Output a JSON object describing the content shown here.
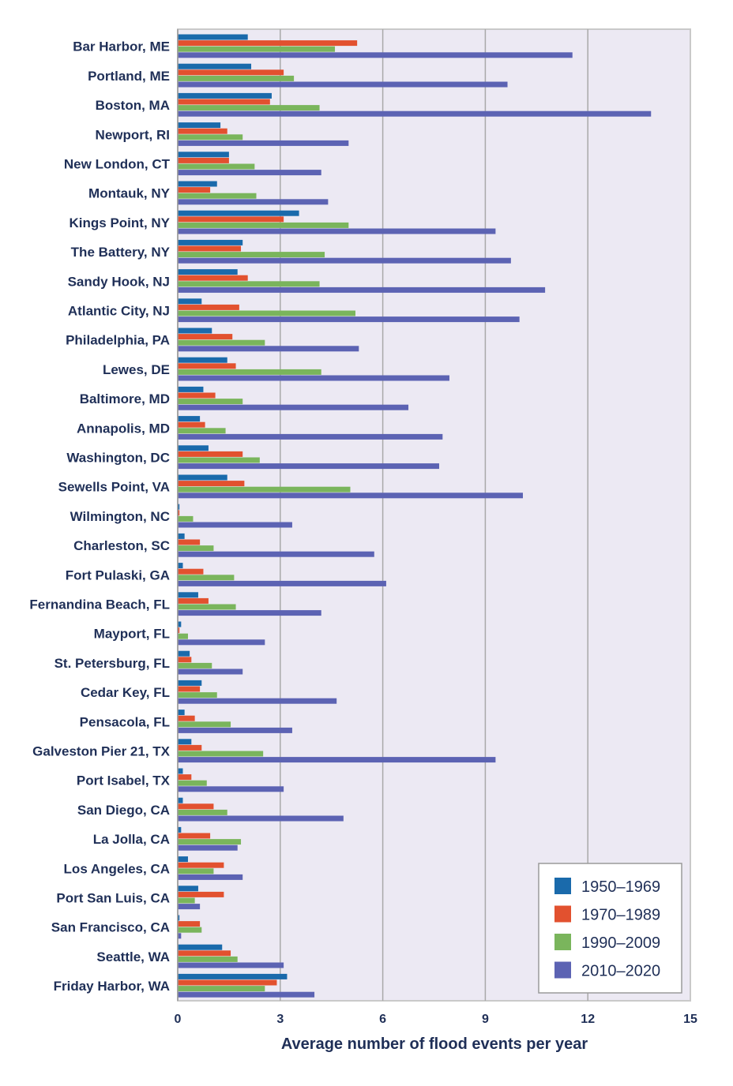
{
  "chart_data": {
    "type": "bar",
    "orientation": "horizontal",
    "title": "",
    "xlabel": "Average number of flood events per year",
    "ylabel": "",
    "xlim": [
      0,
      15
    ],
    "xticks": [
      0,
      3,
      6,
      9,
      12,
      15
    ],
    "grid": true,
    "legend_position": "bottom-right",
    "categories": [
      "Bar Harbor, ME",
      "Portland, ME",
      "Boston, MA",
      "Newport, RI",
      "New London, CT",
      "Montauk, NY",
      "Kings Point, NY",
      "The Battery, NY",
      "Sandy Hook, NJ",
      "Atlantic City, NJ",
      "Philadelphia, PA",
      "Lewes, DE",
      "Baltimore, MD",
      "Annapolis, MD",
      "Washington, DC",
      "Sewells Point, VA",
      "Wilmington, NC",
      "Charleston, SC",
      "Fort Pulaski, GA",
      "Fernandina Beach, FL",
      "Mayport, FL",
      "St. Petersburg, FL",
      "Cedar Key, FL",
      "Pensacola, FL",
      "Galveston Pier 21, TX",
      "Port Isabel, TX",
      "San Diego, CA",
      "La Jolla, CA",
      "Los Angeles, CA",
      "Port San Luis, CA",
      "San Francisco, CA",
      "Seattle, WA",
      "Friday Harbor, WA"
    ],
    "series": [
      {
        "name": "1950–1969",
        "color": "#1a6aab",
        "values": [
          2.05,
          2.15,
          2.75,
          1.25,
          1.5,
          1.15,
          3.55,
          1.9,
          1.75,
          0.7,
          1.0,
          1.45,
          0.75,
          0.65,
          0.9,
          1.45,
          0.05,
          0.2,
          0.15,
          0.6,
          0.1,
          0.35,
          0.7,
          0.2,
          0.4,
          0.15,
          0.15,
          0.1,
          0.3,
          0.6,
          0.05,
          1.3,
          3.2
        ]
      },
      {
        "name": "1970–1989",
        "color": "#e2512f",
        "values": [
          5.25,
          3.1,
          2.7,
          1.45,
          1.5,
          0.95,
          3.1,
          1.85,
          2.05,
          1.8,
          1.6,
          1.7,
          1.1,
          0.8,
          1.9,
          1.95,
          0.05,
          0.65,
          0.75,
          0.9,
          0.05,
          0.4,
          0.65,
          0.5,
          0.7,
          0.4,
          1.05,
          0.95,
          1.35,
          1.35,
          0.65,
          1.55,
          2.9
        ]
      },
      {
        "name": "1990–2009",
        "color": "#7ab55c",
        "values": [
          4.6,
          3.4,
          4.15,
          1.9,
          2.25,
          2.3,
          5.0,
          4.3,
          4.15,
          5.2,
          2.55,
          4.2,
          1.9,
          1.4,
          2.4,
          5.05,
          0.45,
          1.05,
          1.65,
          1.7,
          0.3,
          1.0,
          1.15,
          1.55,
          2.5,
          0.85,
          1.45,
          1.85,
          1.05,
          0.5,
          0.7,
          1.75,
          2.55
        ]
      },
      {
        "name": "2010–2020",
        "color": "#5c63b3",
        "values": [
          11.55,
          9.65,
          13.85,
          5.0,
          4.2,
          4.4,
          9.3,
          9.75,
          10.75,
          10.0,
          5.3,
          7.95,
          6.75,
          7.75,
          7.65,
          10.1,
          3.35,
          5.75,
          6.1,
          4.2,
          2.55,
          1.9,
          4.65,
          3.35,
          9.3,
          3.1,
          4.85,
          1.75,
          1.9,
          0.65,
          0.1,
          3.1,
          4.0
        ]
      }
    ]
  }
}
